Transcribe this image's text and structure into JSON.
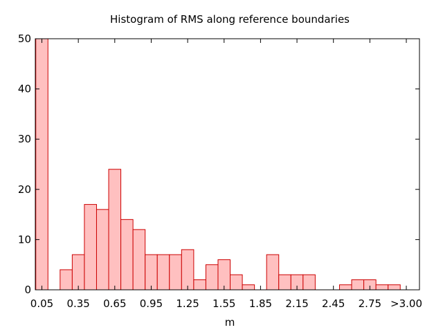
{
  "chart_data": {
    "type": "bar",
    "title": "Histogram of RMS along reference boundaries",
    "xlabel": "m",
    "ylabel": "",
    "ylim": [
      0,
      50
    ],
    "yticks": [
      "0",
      "10",
      "20",
      "30",
      "40",
      "50"
    ],
    "xtick_labels": [
      "0.05",
      "0.35",
      "0.65",
      "0.95",
      "1.25",
      "1.55",
      "1.85",
      "2.15",
      "2.45",
      "2.75",
      ">3.00"
    ],
    "bin_width": 0.1,
    "categories": [
      "0.05",
      "0.15",
      "0.25",
      "0.35",
      "0.45",
      "0.55",
      "0.65",
      "0.75",
      "0.85",
      "0.95",
      "1.05",
      "1.15",
      "1.25",
      "1.35",
      "1.45",
      "1.55",
      "1.65",
      "1.75",
      "1.85",
      "1.95",
      "2.05",
      "2.15",
      "2.25",
      "2.35",
      "2.45",
      "2.55",
      "2.65",
      "2.75",
      "2.85",
      "2.95"
    ],
    "values": [
      50,
      0,
      4,
      7,
      17,
      16,
      24,
      14,
      12,
      7,
      7,
      7,
      8,
      2,
      5,
      6,
      3,
      1,
      0,
      7,
      3,
      3,
      3,
      0,
      0,
      1,
      2,
      2,
      1,
      1
    ],
    "grid": false,
    "colors": {
      "bar_fill": "#ffc0c0",
      "bar_stroke": "#cc0000",
      "axis": "#000000"
    }
  }
}
